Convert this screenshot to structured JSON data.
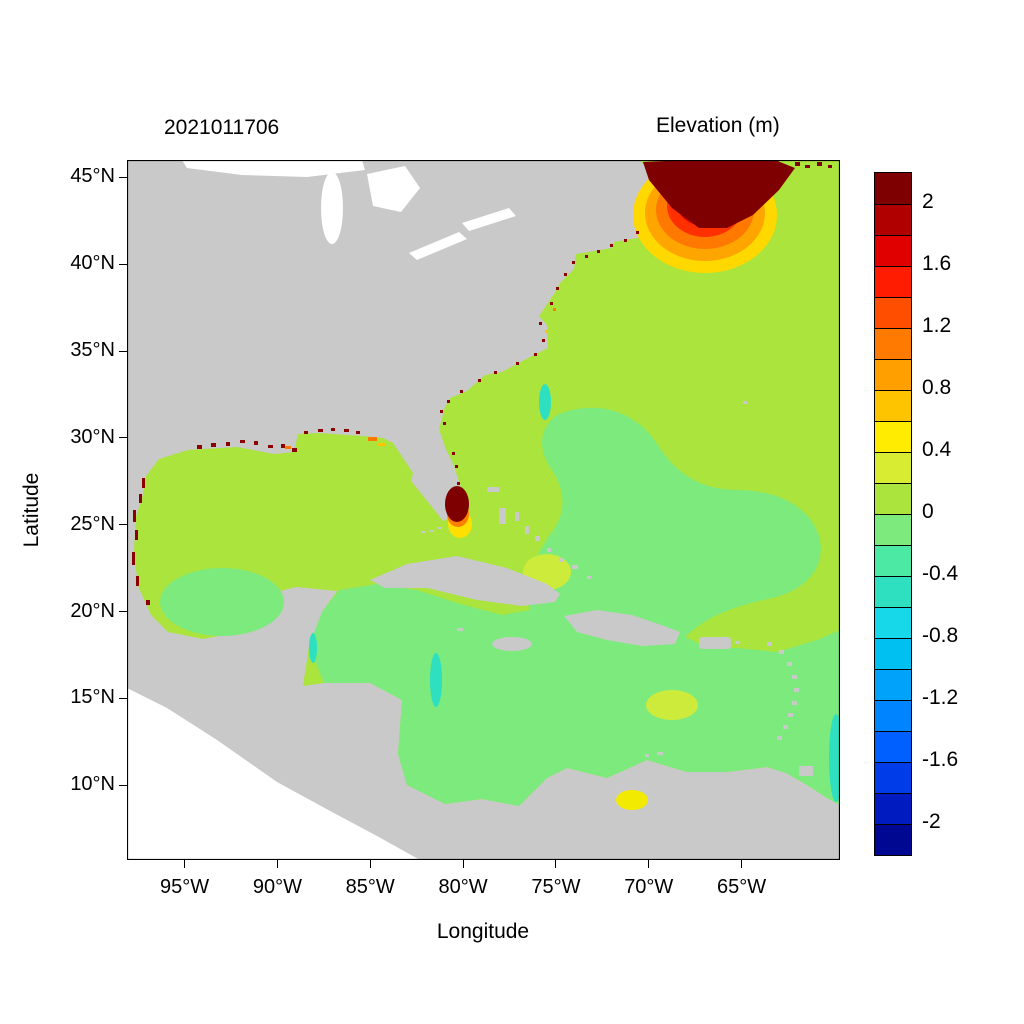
{
  "header": {
    "timestamp": "2021011706",
    "colorbar_title": "Elevation (m)"
  },
  "axes": {
    "x": {
      "label": "Longitude",
      "tick_labels": [
        "95°W",
        "90°W",
        "85°W",
        "80°W",
        "75°W",
        "70°W",
        "65°W"
      ],
      "tick_values": [
        95,
        90,
        85,
        80,
        75,
        70,
        65
      ],
      "range_deg_west": [
        98.1,
        59.7
      ]
    },
    "y": {
      "label": "Latitude",
      "tick_labels": [
        "45°N",
        "40°N",
        "35°N",
        "30°N",
        "25°N",
        "20°N",
        "15°N",
        "10°N"
      ],
      "tick_values": [
        45,
        40,
        35,
        30,
        25,
        20,
        15,
        10
      ],
      "range_deg_north": [
        5.7,
        46.0
      ]
    }
  },
  "colorbar": {
    "tick_labels": [
      "2",
      "1.6",
      "1.2",
      "0.8",
      "0.4",
      "0",
      "-0.4",
      "-0.8",
      "-1.2",
      "-1.6",
      "-2"
    ],
    "tick_values": [
      2,
      1.6,
      1.2,
      0.8,
      0.4,
      0,
      -0.4,
      -0.8,
      -1.2,
      -1.6,
      -2
    ],
    "band_colors_top_to_bottom": [
      "#7f0000",
      "#b10000",
      "#e10000",
      "#ff1c00",
      "#ff4e00",
      "#ff7a00",
      "#ffa000",
      "#ffc400",
      "#ffec00",
      "#d8ed32",
      "#abe43c",
      "#7dea7d",
      "#4ce9a4",
      "#2fe0c0",
      "#17d8e8",
      "#00c0f2",
      "#00a2fa",
      "#0084ff",
      "#0060ff",
      "#003ce8",
      "#001cc0",
      "#000892"
    ]
  },
  "chart_data": {
    "type": "heatmap",
    "title": "2021011706",
    "colorbar_title": "Elevation (m)",
    "xlabel": "Longitude",
    "ylabel": "Latitude",
    "x_ticks": [
      "95°W",
      "90°W",
      "85°W",
      "80°W",
      "75°W",
      "70°W",
      "65°W"
    ],
    "y_ticks": [
      "45°N",
      "40°N",
      "35°N",
      "30°N",
      "25°N",
      "20°N",
      "15°N",
      "10°N"
    ],
    "value_range_m": [
      -2.2,
      2.2
    ],
    "contour_interval_m": 0.2,
    "land_color": "#c9c9c9",
    "out_of_domain_color": "#ffffff",
    "features": [
      {
        "name": "bay-of-fundy-gulf-of-maine-maximum",
        "lon": "66°W",
        "lat": "44.5°N",
        "value": "> 2 m, concentric contours down to ~0.4 m offshore"
      },
      {
        "name": "south-florida-maximum",
        "lon": "80.3°W",
        "lat": "26.5°N",
        "value": "> 2 m with orange/yellow fringe (0.4–1 m)"
      },
      {
        "name": "open-atlantic-background",
        "value": "0 to 0.4 m (yellow-green)"
      },
      {
        "name": "caribbean-and-sw-atlantic-background",
        "value": "-0.2 to 0 m (green)"
      },
      {
        "name": "bay-of-campeche-background",
        "value": "-0.2 to 0 m (green)"
      },
      {
        "name": "coastal-negative-patches",
        "value": "-0.4 to -0.8 m (teal) near Cape Hatteras, Belize, west of Jamaica, SE domain edge"
      },
      {
        "name": "venezuela-coast-patch",
        "value": "0.4 to 0.6 m (yellow)"
      },
      {
        "name": "coastal-high-specks",
        "value": "> 2 m dark-red specks along Gulf coast, Mexican coast and US east coast"
      }
    ]
  }
}
